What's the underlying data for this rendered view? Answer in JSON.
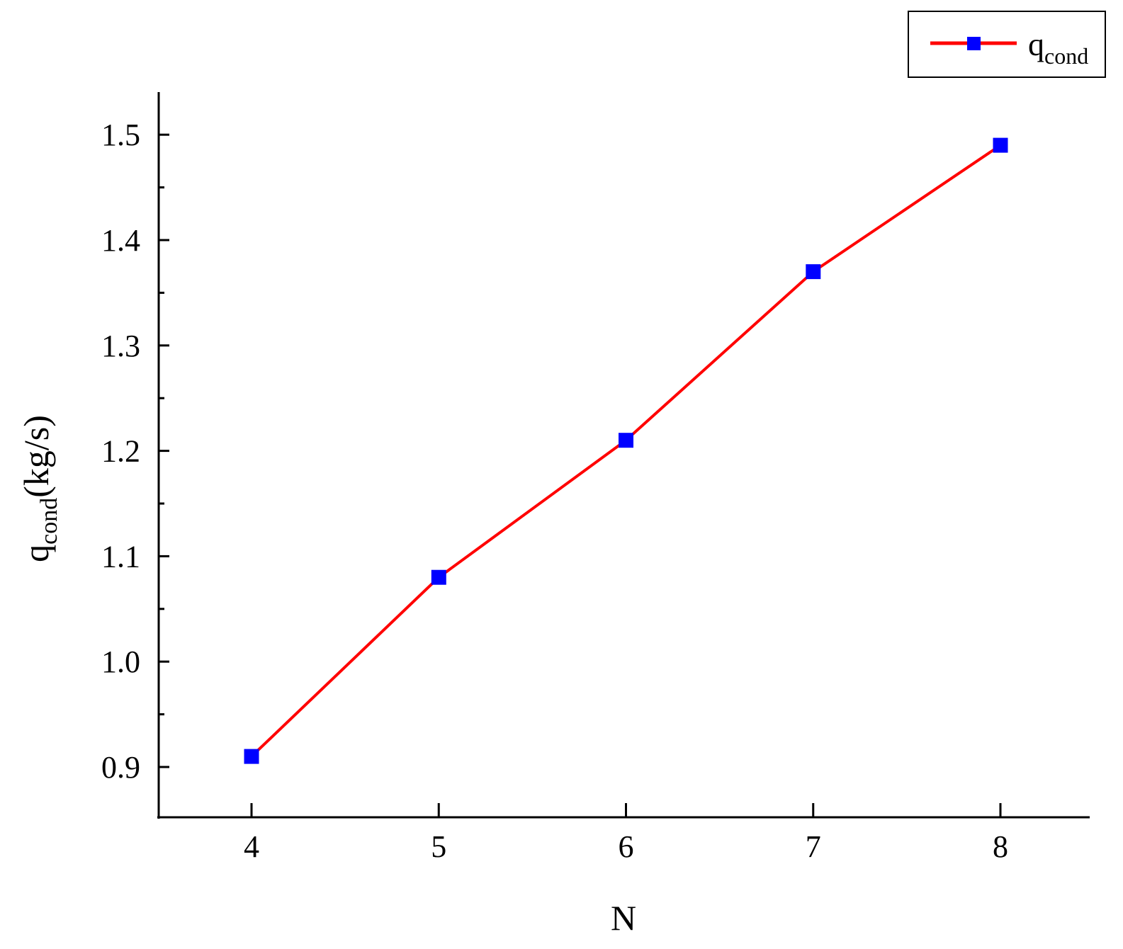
{
  "chart_data": {
    "type": "line",
    "x": [
      4,
      5,
      6,
      7,
      8
    ],
    "series": [
      {
        "name_main": "q",
        "name_sub": "cond",
        "values": [
          0.91,
          1.08,
          1.21,
          1.37,
          1.49
        ],
        "line_color": "#ff0000",
        "marker_color": "#0000ff",
        "marker": "square"
      }
    ],
    "xlabel": "N",
    "ylabel_main": "q",
    "ylabel_sub": "cond",
    "ylabel_unit": "(kg/s)",
    "xticks": [
      "4",
      "5",
      "6",
      "7",
      "8"
    ],
    "yticks": [
      "0.9",
      "1.0",
      "1.1",
      "1.2",
      "1.3",
      "1.4",
      "1.5"
    ],
    "xlim": [
      3.5,
      8.5
    ],
    "ylim": [
      0.85,
      1.54
    ],
    "grid": false,
    "legend_position": "top-right"
  }
}
